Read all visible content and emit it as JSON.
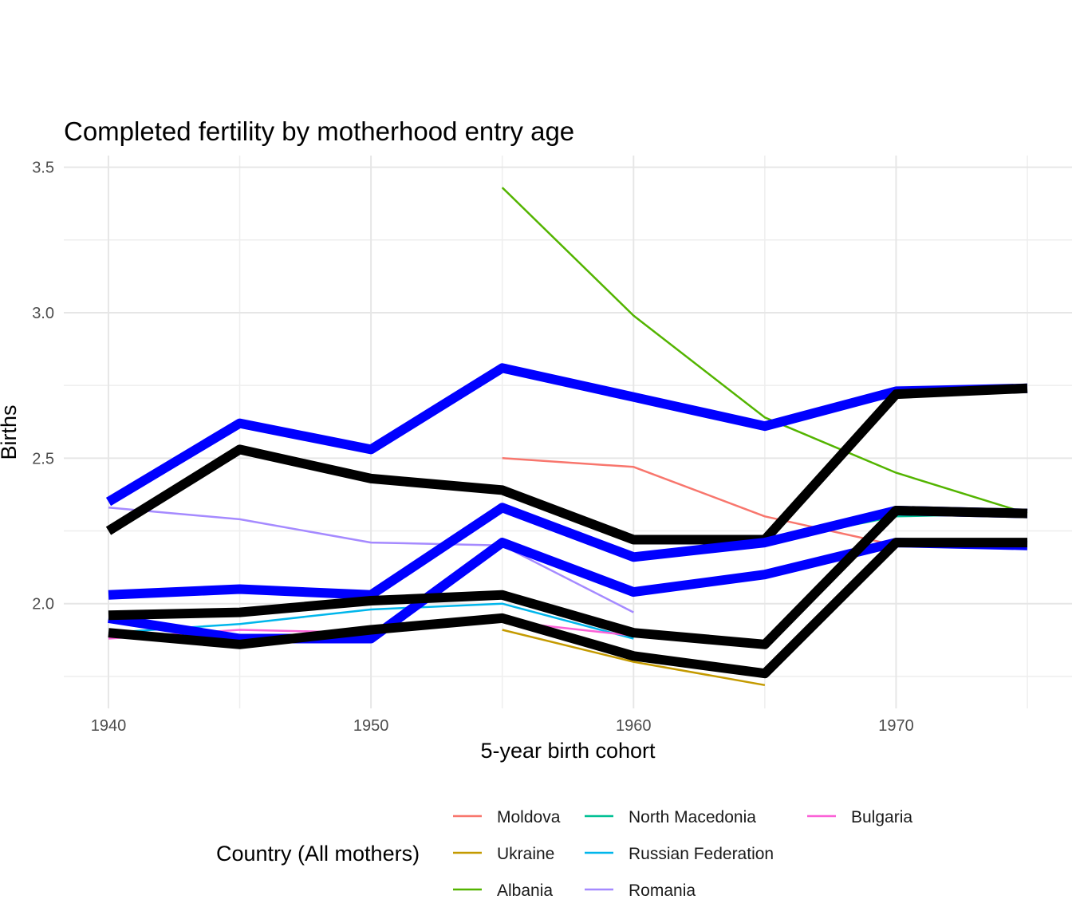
{
  "chart_data": {
    "type": "line",
    "title": "Completed fertility by motherhood entry age",
    "xlabel": "5-year birth cohort",
    "ylabel": "Births",
    "xlim": [
      1938.3,
      1976.7
    ],
    "ylim": [
      1.64,
      3.54
    ],
    "x_ticks": [
      1940,
      1950,
      1960,
      1970
    ],
    "y_ticks": [
      2.0,
      2.5,
      3.0,
      3.5
    ],
    "y_tick_labels": [
      "2.0",
      "2.5",
      "3.0",
      "3.5"
    ],
    "x_minor": [
      1945,
      1955,
      1965,
      1975
    ],
    "y_minor": [
      1.75,
      2.25,
      2.75,
      3.25
    ],
    "grid": true,
    "legend": {
      "title": "Country (All mothers)",
      "position": "bottom",
      "columns": [
        [
          "Moldova",
          "Ukraine",
          "Albania"
        ],
        [
          "North Macedonia",
          "Russian Federation",
          "Romania"
        ],
        [
          "Bulgaria"
        ]
      ]
    },
    "series": [
      {
        "name": "Moldova",
        "color": "#F8766D",
        "x": [
          1955,
          1960,
          1965,
          1970
        ],
        "values": [
          2.5,
          2.47,
          2.3,
          2.2
        ]
      },
      {
        "name": "Ukraine",
        "color": "#C49A00",
        "x": [
          1955,
          1960,
          1965
        ],
        "values": [
          1.91,
          1.8,
          1.72
        ]
      },
      {
        "name": "Albania",
        "color": "#53B400",
        "x": [
          1955,
          1960,
          1965,
          1970,
          1975
        ],
        "values": [
          3.43,
          2.99,
          2.64,
          2.45,
          2.31
        ]
      },
      {
        "name": "North Macedonia",
        "color": "#00C094",
        "x": [
          1965,
          1970,
          1975
        ],
        "values": [
          2.21,
          2.3,
          2.31
        ]
      },
      {
        "name": "Russian Federation",
        "color": "#00B6EB",
        "x": [
          1940,
          1945,
          1950,
          1955,
          1960
        ],
        "values": [
          1.9,
          1.93,
          1.98,
          2.0,
          1.88
        ]
      },
      {
        "name": "Romania",
        "color": "#A58AFF",
        "x": [
          1940,
          1945,
          1950,
          1955,
          1960
        ],
        "values": [
          2.33,
          2.29,
          2.21,
          2.2,
          1.97
        ]
      },
      {
        "name": "Bulgaria",
        "color": "#FB61D7",
        "x": [
          1940,
          1945,
          1950,
          1955,
          1960
        ],
        "values": [
          1.88,
          1.91,
          1.9,
          1.94,
          1.89
        ]
      }
    ],
    "summary_lines": [
      {
        "color": "#0000FF",
        "x": [
          1940,
          1945,
          1950,
          1955,
          1960,
          1965,
          1970,
          1975
        ],
        "values": [
          2.35,
          2.62,
          2.53,
          2.81,
          2.71,
          2.61,
          2.73,
          2.74
        ]
      },
      {
        "color": "#000000",
        "x": [
          1940,
          1945,
          1950,
          1955,
          1960,
          1965,
          1970,
          1975
        ],
        "values": [
          2.25,
          2.53,
          2.43,
          2.39,
          2.22,
          2.22,
          2.72,
          2.74
        ]
      },
      {
        "color": "#0000FF",
        "x": [
          1940,
          1945,
          1950,
          1955,
          1960,
          1965,
          1970,
          1975
        ],
        "values": [
          2.03,
          2.05,
          2.03,
          2.33,
          2.16,
          2.21,
          2.32,
          2.31
        ]
      },
      {
        "color": "#0000FF",
        "x": [
          1940,
          1945,
          1950,
          1955,
          1960,
          1965,
          1970,
          1975
        ],
        "values": [
          1.95,
          1.88,
          1.88,
          2.21,
          2.04,
          2.1,
          2.21,
          2.2
        ]
      },
      {
        "color": "#000000",
        "x": [
          1940,
          1945,
          1950,
          1955,
          1960,
          1965,
          1970,
          1975
        ],
        "values": [
          1.96,
          1.97,
          2.01,
          2.03,
          1.9,
          1.86,
          2.32,
          2.31
        ]
      },
      {
        "color": "#000000",
        "x": [
          1940,
          1945,
          1950,
          1955,
          1960,
          1965,
          1970,
          1975
        ],
        "values": [
          1.9,
          1.86,
          1.91,
          1.95,
          1.82,
          1.76,
          2.21,
          2.21
        ]
      }
    ]
  }
}
